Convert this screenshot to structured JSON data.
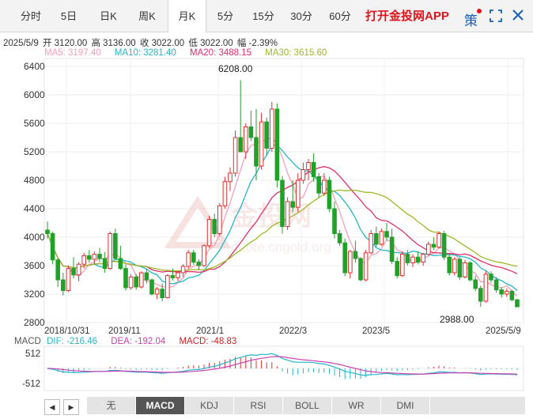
{
  "tabs": [
    {
      "label": "分时",
      "active": false
    },
    {
      "label": "5日",
      "active": false
    },
    {
      "label": "日K",
      "active": false
    },
    {
      "label": "周K",
      "active": false
    },
    {
      "label": "月K",
      "active": true
    },
    {
      "label": "5分",
      "active": false
    },
    {
      "label": "15分",
      "active": false
    },
    {
      "label": "30分",
      "active": false
    },
    {
      "label": "60分",
      "active": false
    }
  ],
  "app_link": "打开金投网APP",
  "ce_icon_text": "策",
  "info": {
    "date": "2025/5/9",
    "open": "开 3120.00",
    "high": "高 3136.00",
    "close": "收 3022.00",
    "low": "低 3022.00",
    "change": "幅 -2.39%"
  },
  "ma": [
    {
      "label": "MA5: 3197.40",
      "color": "#f4a0b6"
    },
    {
      "label": "MA10: 3281.40",
      "color": "#23b7c9"
    },
    {
      "label": "MA20: 3488.15",
      "color": "#e0306a"
    },
    {
      "label": "MA30: 3615.60",
      "color": "#9cba24"
    }
  ],
  "macd_values": [
    {
      "label": "MACD",
      "color": "#555555"
    },
    {
      "label": "DIF: -216.46",
      "color": "#23b7c9"
    },
    {
      "label": "DEA: -192.04",
      "color": "#cc3fb0"
    },
    {
      "label": "MACD: -48.83",
      "color": "#cc2222"
    }
  ],
  "indicator_tabs": [
    "无",
    "MACD",
    "KDJ",
    "RSI",
    "BOLL",
    "WR",
    "DMI"
  ],
  "indicator_active": "MACD",
  "nav": {
    "left": "◀",
    "right": "▶"
  },
  "colors": {
    "up": "#e03030",
    "down": "#23a02a",
    "watermark": "#f3c6c6"
  },
  "chart_data": {
    "type": "candlestick",
    "period": "monthly",
    "ylim": [
      2800,
      6400
    ],
    "y_ticks": [
      "6400",
      "6000",
      "5600",
      "5200",
      "4800",
      "4400",
      "4000",
      "3600",
      "3200",
      "2800"
    ],
    "x_labels": [
      "2018/10/31",
      "2019/11",
      "2021/1",
      "2022/3",
      "2023/5",
      "2025/5/9"
    ],
    "max_label": "6208.00",
    "min_label": "2988.00",
    "macd_ticks": [
      "512",
      "-512"
    ],
    "macd_ylim": [
      -700,
      700
    ],
    "watermark": "quote.cngold.org",
    "ma_series_colors": [
      "#f4a0b6",
      "#23b7c9",
      "#e0306a",
      "#9cba24"
    ]
  }
}
